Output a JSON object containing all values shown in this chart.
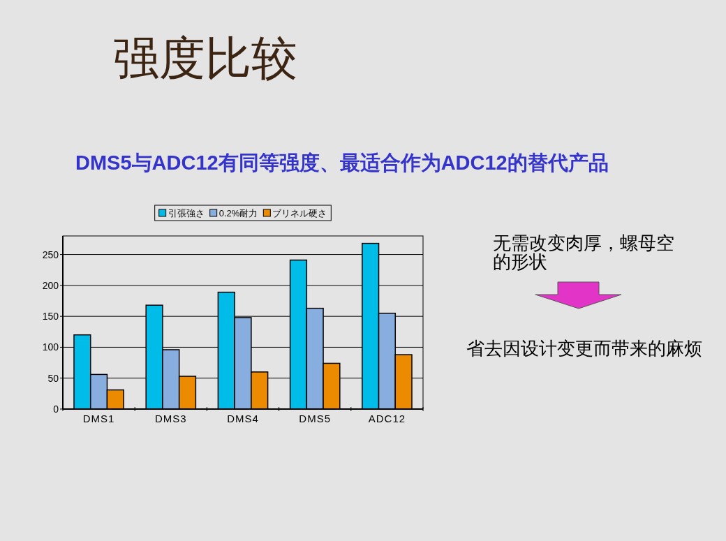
{
  "chart_data": {
    "type": "bar",
    "title": "强度比较",
    "subtitle": "DMS5与ADC12有同等强度、最适合作为ADC12的替代产品",
    "categories": [
      "DMS1",
      "DMS3",
      "DMS4",
      "DMS5",
      "ADC12"
    ],
    "series": [
      {
        "name": "引張強さ",
        "color": "#00bce8",
        "values": [
          120,
          168,
          189,
          241,
          268
        ]
      },
      {
        "name": "0.2%耐力",
        "color": "#88aee0",
        "values": [
          56,
          96,
          148,
          163,
          155
        ]
      },
      {
        "name": "ブリネル硬さ",
        "color": "#ec8a00",
        "values": [
          31,
          53,
          60,
          74,
          88
        ]
      }
    ],
    "ylim": [
      0,
      280
    ],
    "yticks": [
      0,
      50,
      100,
      150,
      200,
      250
    ],
    "grid": "y",
    "legend": "top",
    "annotations": [
      "无需改变肉厚，螺母空的形状",
      "省去因设计变更而带来的麻烦"
    ]
  }
}
